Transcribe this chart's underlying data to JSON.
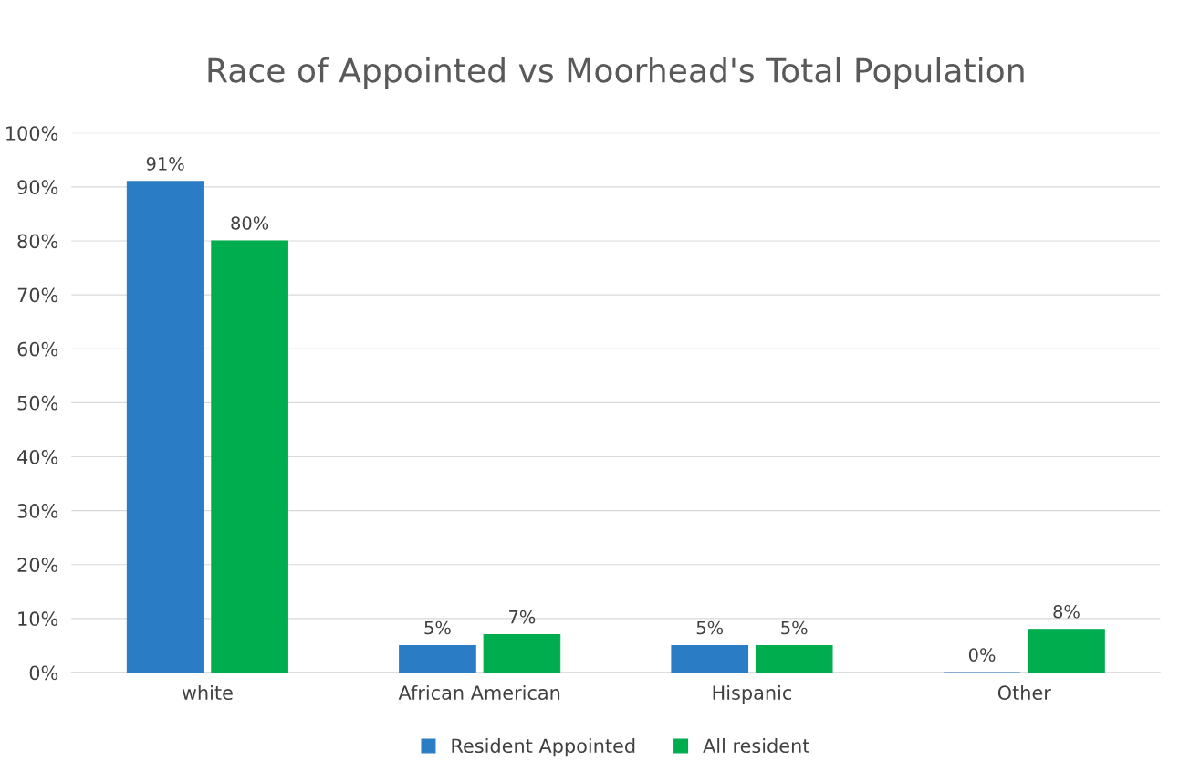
{
  "chart_data": {
    "type": "bar",
    "title": "Race of Appointed vs Moorhead's Total Population",
    "categories": [
      "white",
      "African American",
      "Hispanic",
      "Other"
    ],
    "series": [
      {
        "name": "Resident Appointed",
        "color": "#2a7dc4",
        "values": [
          91,
          5,
          5,
          0
        ],
        "value_labels": [
          "91%",
          "5%",
          "5%",
          "0%"
        ]
      },
      {
        "name": "All resident",
        "color": "#00ad4e",
        "values": [
          80,
          7,
          5,
          8
        ],
        "value_labels": [
          "80%",
          "7%",
          "5%",
          "8%"
        ]
      }
    ],
    "ylim": [
      0,
      100
    ],
    "yticks": [
      {
        "value": 0,
        "label": "0%"
      },
      {
        "value": 10,
        "label": "10%"
      },
      {
        "value": 20,
        "label": "20%"
      },
      {
        "value": 30,
        "label": "30%"
      },
      {
        "value": 40,
        "label": "40%"
      },
      {
        "value": 50,
        "label": "50%"
      },
      {
        "value": 60,
        "label": "60%"
      },
      {
        "value": 70,
        "label": "70%"
      },
      {
        "value": 80,
        "label": "80%"
      },
      {
        "value": 90,
        "label": "90%"
      },
      {
        "value": 100,
        "label": "100%"
      }
    ],
    "grid": "y",
    "legend": "bottom"
  }
}
